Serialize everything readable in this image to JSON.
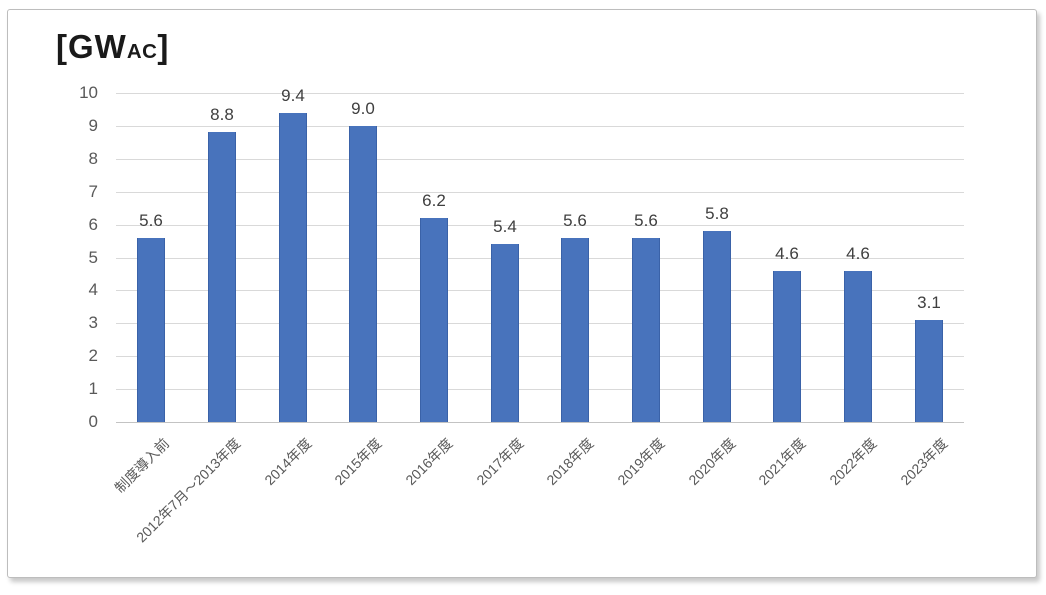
{
  "chart": {
    "unit_label": {
      "prefix": "[GW",
      "sub": "AC",
      "suffix": "]"
    }
  },
  "chart_data": {
    "type": "bar",
    "title": "[GWAC]",
    "categories": [
      "制度導入前",
      "2012年7月～2013年度",
      "2014年度",
      "2015年度",
      "2016年度",
      "2017年度",
      "2018年度",
      "2019年度",
      "2020年度",
      "2021年度",
      "2022年度",
      "2023年度"
    ],
    "values": [
      5.6,
      8.8,
      9.4,
      9.0,
      6.2,
      5.4,
      5.6,
      5.6,
      5.8,
      4.6,
      4.6,
      3.1
    ],
    "data_labels": [
      "5.6",
      "8.8",
      "9.4",
      "9.0",
      "6.2",
      "5.4",
      "5.6",
      "5.6",
      "5.8",
      "4.6",
      "4.6",
      "3.1"
    ],
    "xlabel": "",
    "ylabel": "",
    "ylim": [
      0,
      10
    ],
    "yticks": [
      0,
      1,
      2,
      3,
      4,
      5,
      6,
      7,
      8,
      9,
      10
    ],
    "grid": true,
    "legend": false,
    "colors": {
      "bar_fill": "#4873BC",
      "bar_border": "#3A62A8",
      "gridline": "#D9D9D9",
      "axis_line": "#C3C3C3",
      "tick_label": "#595959",
      "data_label": "#3F3F3F",
      "title": "#1A1A1A"
    }
  }
}
